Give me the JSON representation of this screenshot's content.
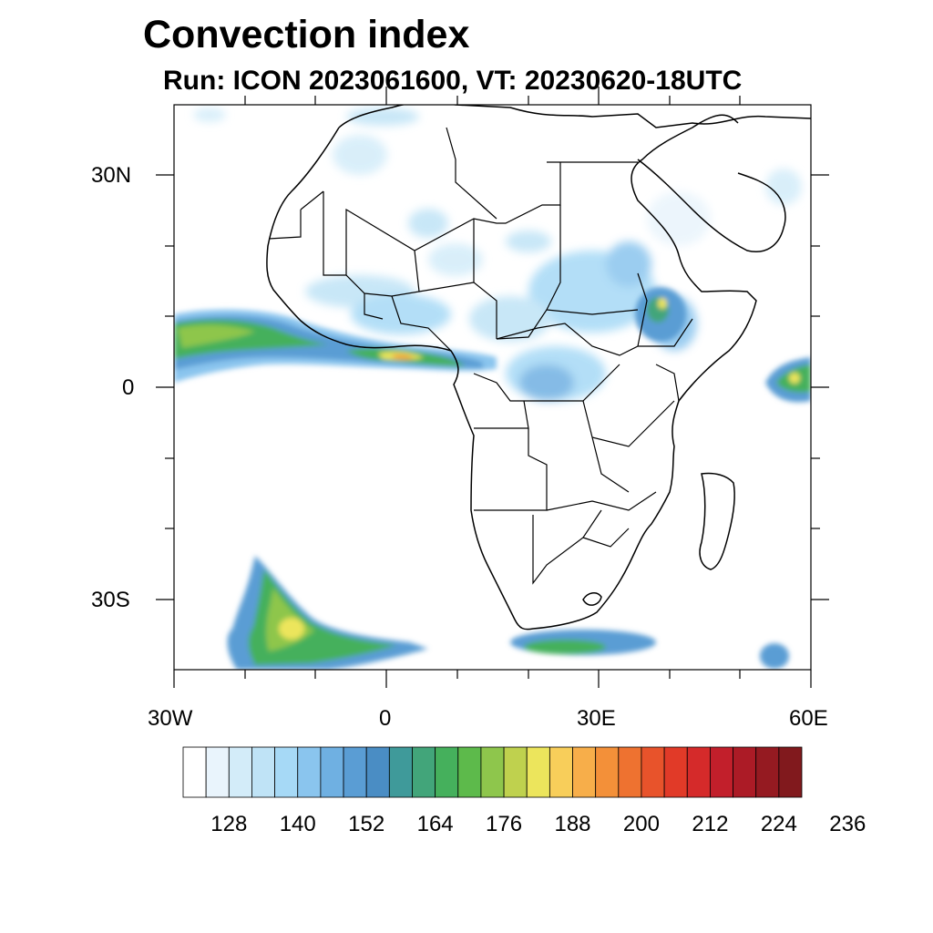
{
  "title": "Convection index",
  "subtitle": "Run: ICON 2023061600,  VT: 20230620-18UTC",
  "map": {
    "lat_labels": [
      "30N",
      "0",
      "30S"
    ],
    "lon_labels": [
      "30W",
      "0",
      "30E",
      "60E"
    ]
  },
  "colorbar": {
    "tick_labels": [
      "128",
      "140",
      "152",
      "164",
      "176",
      "188",
      "200",
      "212",
      "224",
      "236"
    ],
    "colors": [
      "#ffffff",
      "#e9f4fc",
      "#d3ecf9",
      "#bfe3f6",
      "#a6d9f6",
      "#8ac5ee",
      "#6fb0e2",
      "#5a9dd4",
      "#4a8dc4",
      "#3f9a9a",
      "#42a57a",
      "#45b05c",
      "#5dba4b",
      "#8ec64c",
      "#bfd14e",
      "#ece55c",
      "#f8ce5a",
      "#f7ae4a",
      "#f39039",
      "#ee7230",
      "#e8532b",
      "#e13a28",
      "#d52a2a",
      "#c21f2b",
      "#ac1b26",
      "#951a21",
      "#81191d"
    ]
  }
}
